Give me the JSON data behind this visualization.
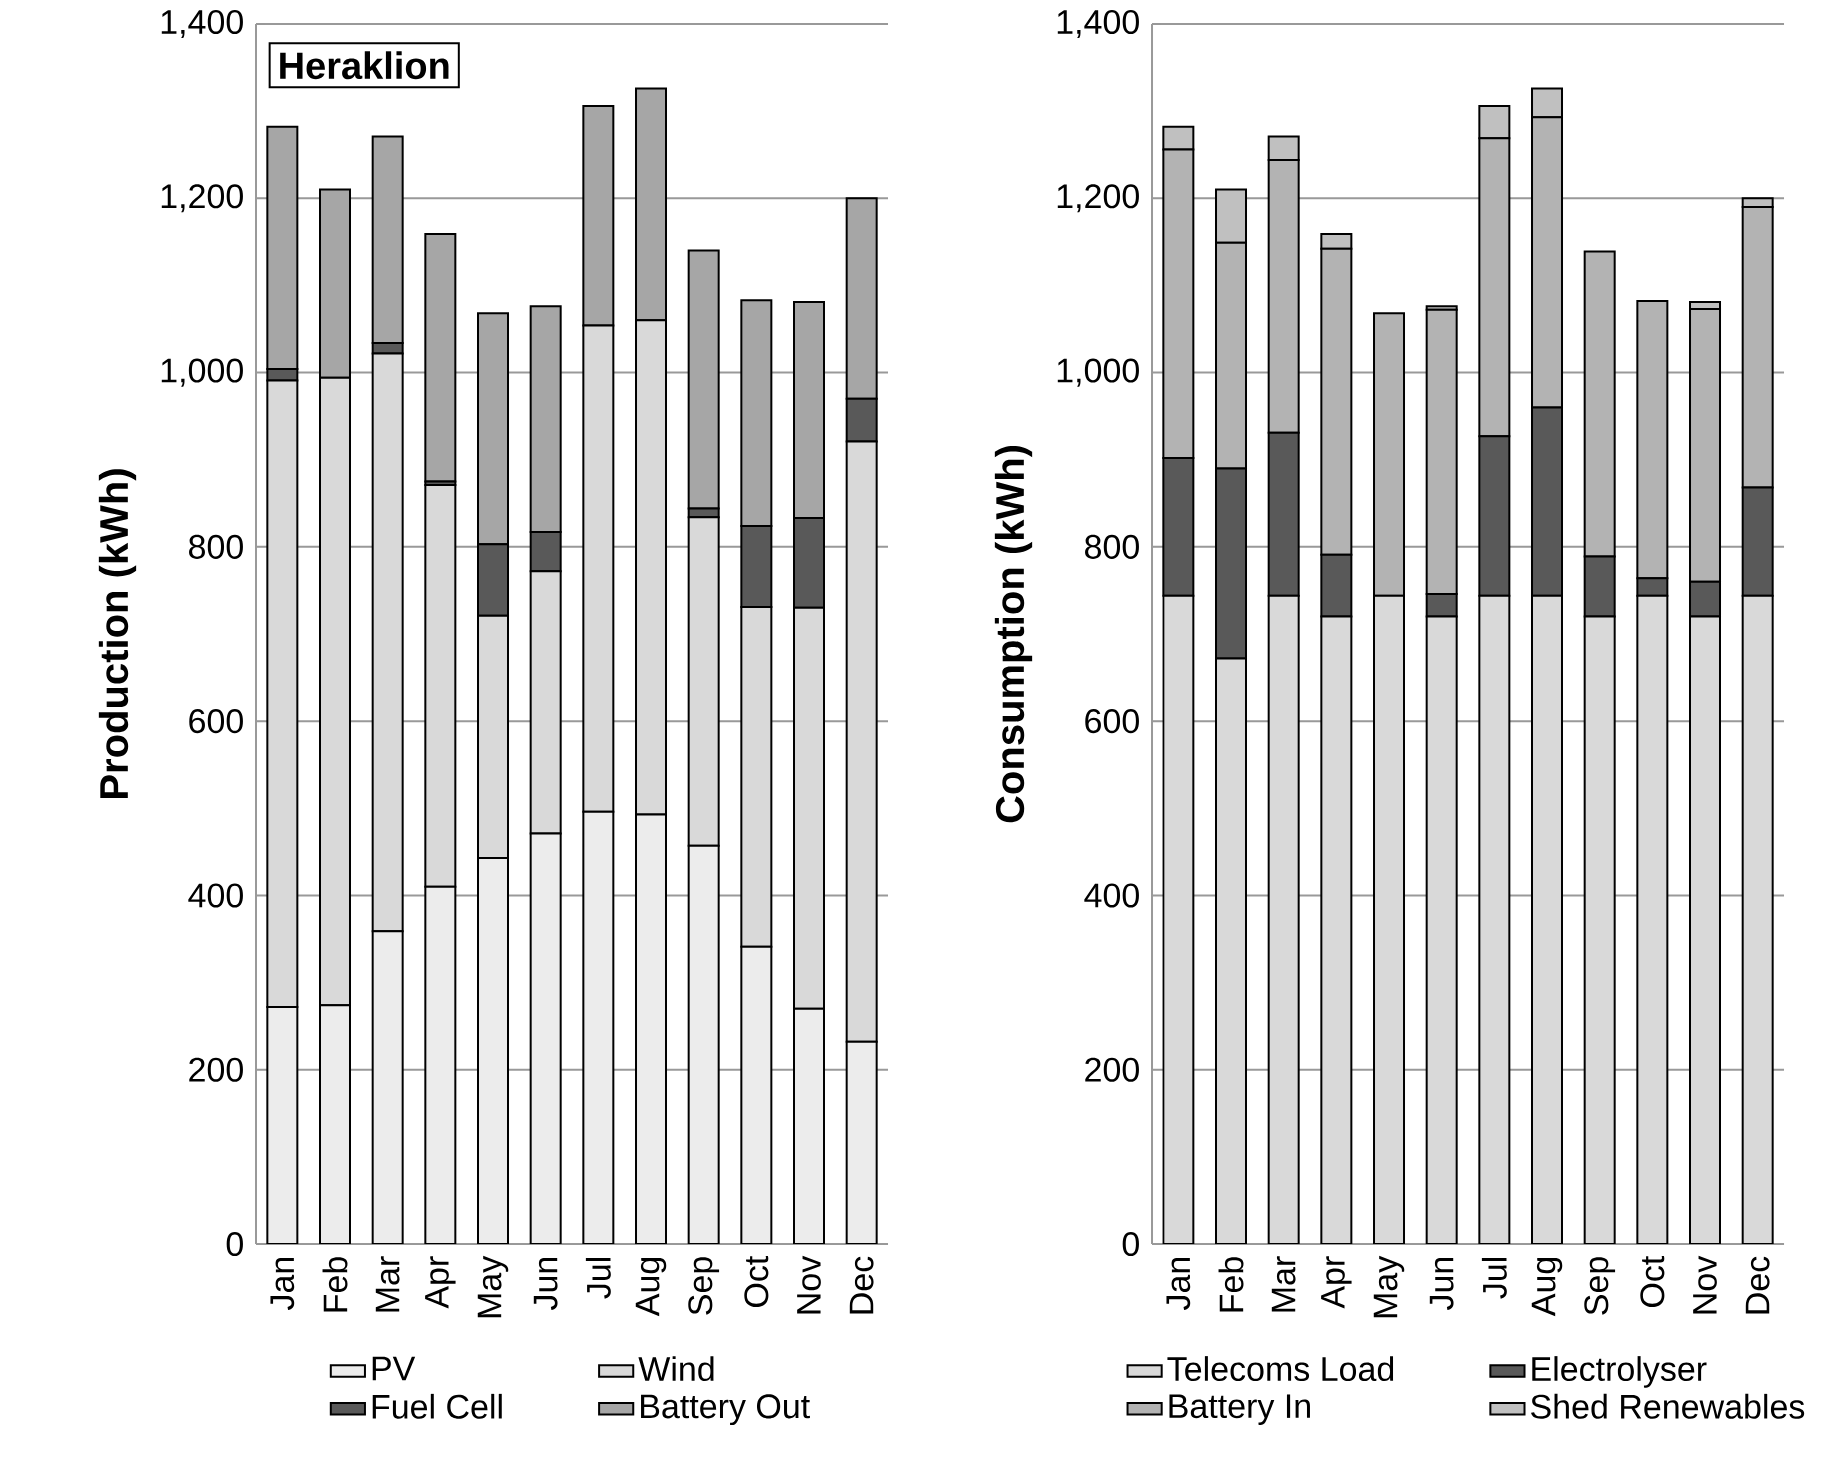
{
  "chart_data": [
    {
      "type": "bar",
      "stacked": true,
      "title": "Heraklion",
      "ylabel": "Production (kWh)",
      "categories": [
        "Jan",
        "Feb",
        "Mar",
        "Apr",
        "May",
        "Jun",
        "Jul",
        "Aug",
        "Sep",
        "Oct",
        "Nov",
        "Dec"
      ],
      "series": [
        {
          "name": "PV",
          "color": "#ececec",
          "values": [
            272,
            274,
            359,
            410,
            443,
            471,
            496,
            493,
            457,
            341,
            270,
            232
          ]
        },
        {
          "name": "Wind",
          "color": "#d9d9d9",
          "values": [
            719,
            720,
            663,
            461,
            278,
            301,
            558,
            567,
            377,
            390,
            460,
            689
          ]
        },
        {
          "name": "Fuel Cell",
          "color": "#595959",
          "values": [
            13,
            0,
            12,
            4,
            82,
            45,
            0,
            0,
            10,
            93,
            103,
            49
          ]
        },
        {
          "name": "Battery Out",
          "color": "#a6a6a6",
          "values": [
            278,
            216,
            237,
            284,
            265,
            259,
            252,
            266,
            296,
            259,
            248,
            230
          ]
        }
      ],
      "ylim": [
        0,
        1400
      ],
      "yticks": [
        0,
        200,
        400,
        600,
        800,
        {
          "value": 1000,
          "label": "1,000"
        },
        {
          "value": 1200,
          "label": "1,200"
        },
        {
          "value": 1400,
          "label": "1,400"
        }
      ],
      "grid": "y",
      "legend": "bottom"
    },
    {
      "type": "bar",
      "stacked": true,
      "ylabel": "Consumption (kWh)",
      "categories": [
        "Jan",
        "Feb",
        "Mar",
        "Apr",
        "May",
        "Jun",
        "Jul",
        "Aug",
        "Sep",
        "Oct",
        "Nov",
        "Dec"
      ],
      "series": [
        {
          "name": "Telecoms Load",
          "color": "#d9d9d9",
          "values": [
            744,
            672,
            744,
            720,
            744,
            720,
            744,
            744,
            720,
            744,
            720,
            744
          ]
        },
        {
          "name": "Electrolyser",
          "color": "#595959",
          "values": [
            158,
            218,
            187,
            71,
            0,
            26,
            183,
            216,
            69,
            20,
            40,
            124
          ]
        },
        {
          "name": "Battery In",
          "color": "#b3b3b3",
          "values": [
            354,
            259,
            313,
            351,
            324,
            326,
            342,
            333,
            350,
            318,
            313,
            322
          ]
        },
        {
          "name": "Shed Renewables",
          "color": "#c0c0c0",
          "values": [
            26,
            61,
            27,
            17,
            0,
            4,
            37,
            33,
            0,
            0,
            8,
            10
          ]
        }
      ],
      "ylim": [
        0,
        1400
      ],
      "yticks": [
        0,
        200,
        400,
        600,
        800,
        {
          "value": 1000,
          "label": "1,000"
        },
        {
          "value": 1200,
          "label": "1,200"
        },
        {
          "value": 1400,
          "label": "1,400"
        }
      ],
      "grid": "y",
      "legend": "bottom"
    }
  ]
}
